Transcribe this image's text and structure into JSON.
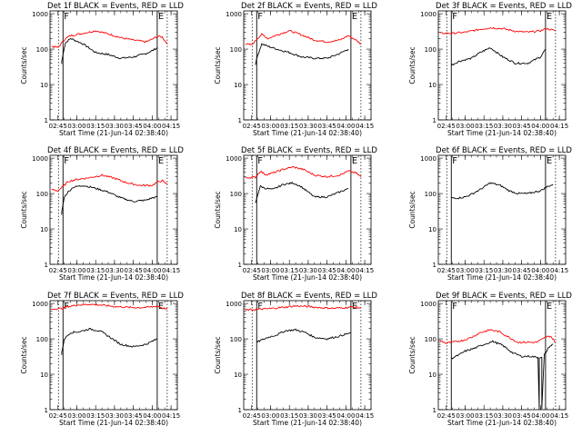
{
  "chart_data": [
    {
      "type": "line",
      "title": "Det 1f BLACK = Events, RED = LLD",
      "xlabel": "Start Time (21-Jun-14 02:38:40)",
      "ylabel": "Counts/sec",
      "x_tick_labels": [
        "02:45",
        "03:00",
        "03:15",
        "03:30",
        "03:45",
        "04:00",
        "04:15"
      ],
      "y_tick_labels": [
        "1",
        "10",
        "100",
        "1000"
      ],
      "ylim": [
        1,
        1200
      ],
      "yscale": "log",
      "markers": [
        {
          "label": "F",
          "time": "02:49"
        },
        {
          "label": "E",
          "time": "04:04"
        }
      ],
      "series": [
        {
          "name": "Events",
          "color": "#000000",
          "time": [
            "02:48",
            "02:48",
            "02:50",
            "02:51",
            "02:55",
            "03:05",
            "03:15",
            "03:25",
            "03:35",
            "03:45",
            "03:55",
            "04:00",
            "04:04"
          ],
          "values": [
            38,
            45,
            110,
            150,
            200,
            140,
            80,
            70,
            55,
            60,
            75,
            90,
            110
          ]
        },
        {
          "name": "LLD",
          "color": "#ff0000",
          "time": [
            "02:40",
            "02:45",
            "02:51",
            "02:55",
            "03:05",
            "03:15",
            "03:25",
            "03:35",
            "03:45",
            "03:55",
            "04:00",
            "04:04",
            "04:08",
            "04:12"
          ],
          "values": [
            120,
            110,
            200,
            240,
            280,
            330,
            270,
            210,
            180,
            160,
            190,
            230,
            220,
            140
          ]
        }
      ]
    },
    {
      "type": "line",
      "title": "Det 2f BLACK = Events, RED = LLD",
      "xlabel": "Start Time (21-Jun-14 02:38:40)",
      "ylabel": "Counts/sec",
      "x_tick_labels": [
        "02:45",
        "03:00",
        "03:15",
        "03:30",
        "03:45",
        "04:00",
        "04:15"
      ],
      "y_tick_labels": [
        "1",
        "10",
        "100",
        "1000"
      ],
      "ylim": [
        1,
        1200
      ],
      "yscale": "log",
      "markers": [
        {
          "label": "F",
          "time": "02:49"
        },
        {
          "label": "E",
          "time": "04:04"
        }
      ],
      "series": [
        {
          "name": "Events",
          "color": "#000000",
          "time": [
            "02:48",
            "02:50",
            "02:53",
            "02:58",
            "03:05",
            "03:15",
            "03:25",
            "03:35",
            "03:45",
            "03:55",
            "04:02"
          ],
          "values": [
            38,
            70,
            140,
            120,
            100,
            80,
            60,
            55,
            55,
            75,
            100
          ]
        },
        {
          "name": "LLD",
          "color": "#ff0000",
          "time": [
            "02:40",
            "02:45",
            "02:49",
            "02:53",
            "02:58",
            "03:05",
            "03:15",
            "03:25",
            "03:35",
            "03:45",
            "03:55",
            "04:02",
            "04:08",
            "04:12"
          ],
          "values": [
            140,
            130,
            190,
            260,
            200,
            250,
            330,
            250,
            180,
            160,
            180,
            240,
            180,
            140
          ]
        }
      ]
    },
    {
      "type": "line",
      "title": "Det 3f BLACK = Events, RED = LLD",
      "xlabel": "Start Time (21-Jun-14 02:38:40)",
      "ylabel": "Counts/sec",
      "x_tick_labels": [
        "02:45",
        "03:00",
        "03:15",
        "03:30",
        "03:45",
        "04:00",
        "04:15"
      ],
      "y_tick_labels": [
        "1",
        "10",
        "100",
        "1000"
      ],
      "ylim": [
        1,
        1200
      ],
      "yscale": "log",
      "markers": [
        {
          "label": "F",
          "time": "02:49"
        },
        {
          "label": "E",
          "time": "04:04"
        }
      ],
      "series": [
        {
          "name": "Events",
          "color": "#000000",
          "time": [
            "02:49",
            "02:55",
            "03:00",
            "03:05",
            "03:12",
            "03:20",
            "03:30",
            "03:40",
            "03:50",
            "04:00",
            "04:04"
          ],
          "values": [
            35,
            45,
            50,
            55,
            80,
            110,
            60,
            40,
            40,
            60,
            100
          ]
        },
        {
          "name": "LLD",
          "color": "#ff0000",
          "time": [
            "02:40",
            "02:50",
            "03:00",
            "03:10",
            "03:20",
            "03:30",
            "03:40",
            "03:50",
            "04:00",
            "04:05",
            "04:12"
          ],
          "values": [
            280,
            280,
            300,
            350,
            400,
            380,
            320,
            300,
            330,
            380,
            330
          ]
        }
      ]
    },
    {
      "type": "line",
      "title": "Det 4f BLACK = Events, RED = LLD",
      "xlabel": "Start Time (21-Jun-14 02:38:40)",
      "ylabel": "Counts/sec",
      "x_tick_labels": [
        "02:45",
        "03:00",
        "03:15",
        "03:30",
        "03:45",
        "04:00",
        "04:15"
      ],
      "y_tick_labels": [
        "1",
        "10",
        "100",
        "1000"
      ],
      "ylim": [
        1,
        1200
      ],
      "yscale": "log",
      "markers": [
        {
          "label": "F",
          "time": "02:49"
        },
        {
          "label": "E",
          "time": "04:04"
        }
      ],
      "series": [
        {
          "name": "Events",
          "color": "#000000",
          "time": [
            "02:48",
            "02:48",
            "02:50",
            "02:53",
            "02:57",
            "03:05",
            "03:15",
            "03:25",
            "03:35",
            "03:45",
            "03:55",
            "04:00",
            "04:04"
          ],
          "values": [
            25,
            30,
            80,
            110,
            150,
            170,
            140,
            110,
            75,
            60,
            65,
            75,
            80
          ]
        },
        {
          "name": "LLD",
          "color": "#ff0000",
          "time": [
            "02:40",
            "02:45",
            "02:50",
            "02:53",
            "03:00",
            "03:10",
            "03:20",
            "03:30",
            "03:40",
            "03:50",
            "04:00",
            "04:04",
            "04:08",
            "04:12"
          ],
          "values": [
            130,
            120,
            170,
            220,
            250,
            280,
            330,
            270,
            200,
            170,
            170,
            210,
            230,
            180
          ]
        }
      ]
    },
    {
      "type": "line",
      "title": "Det 5f BLACK = Events, RED = LLD",
      "xlabel": "Start Time (21-Jun-14 02:38:40)",
      "ylabel": "Counts/sec",
      "x_tick_labels": [
        "02:45",
        "03:00",
        "03:15",
        "03:30",
        "03:45",
        "04:00",
        "04:15"
      ],
      "y_tick_labels": [
        "1",
        "10",
        "100",
        "1000"
      ],
      "ylim": [
        1,
        1200
      ],
      "yscale": "log",
      "markers": [
        {
          "label": "F",
          "time": "02:49"
        },
        {
          "label": "E",
          "time": "04:04"
        }
      ],
      "series": [
        {
          "name": "Events",
          "color": "#000000",
          "time": [
            "02:48",
            "02:50",
            "02:52",
            "02:56",
            "03:02",
            "03:10",
            "03:18",
            "03:24",
            "03:35",
            "03:45",
            "03:55",
            "04:02"
          ],
          "values": [
            55,
            100,
            160,
            140,
            130,
            180,
            200,
            160,
            80,
            80,
            110,
            140
          ]
        },
        {
          "name": "LLD",
          "color": "#ff0000",
          "time": [
            "02:40",
            "02:48",
            "02:52",
            "02:56",
            "03:02",
            "03:10",
            "03:18",
            "03:26",
            "03:35",
            "03:45",
            "03:55",
            "04:02",
            "04:08",
            "04:12"
          ],
          "values": [
            280,
            290,
            430,
            340,
            380,
            480,
            560,
            480,
            330,
            300,
            330,
            430,
            380,
            300
          ]
        }
      ]
    },
    {
      "type": "line",
      "title": "Det 6f BLACK = Events, RED = LLD",
      "xlabel": "Start Time (21-Jun-14 02:38:40)",
      "ylabel": "Counts/sec",
      "x_tick_labels": [
        "02:45",
        "03:00",
        "03:15",
        "03:30",
        "03:45",
        "04:00",
        "04:15"
      ],
      "y_tick_labels": [
        "1",
        "10",
        "100",
        "1000"
      ],
      "ylim": [
        1,
        1200
      ],
      "yscale": "log",
      "markers": [
        {
          "label": "F",
          "time": "02:49"
        },
        {
          "label": "E",
          "time": "04:04"
        }
      ],
      "series": [
        {
          "name": "Events",
          "color": "#000000",
          "time": [
            "02:49",
            "02:55",
            "03:00",
            "03:05",
            "03:12",
            "03:20",
            "03:28",
            "03:35",
            "03:42",
            "03:50",
            "04:00",
            "04:06",
            "04:10"
          ],
          "values": [
            75,
            75,
            80,
            95,
            130,
            200,
            170,
            120,
            100,
            100,
            120,
            160,
            180
          ]
        }
      ]
    },
    {
      "type": "line",
      "title": "Det 7f BLACK = Events, RED = LLD",
      "xlabel": "Start Time (21-Jun-14 02:38:40)",
      "ylabel": "Counts/sec",
      "x_tick_labels": [
        "02:45",
        "03:00",
        "03:15",
        "03:30",
        "03:45",
        "04:00",
        "04:15"
      ],
      "y_tick_labels": [
        "1",
        "10",
        "100",
        "1000"
      ],
      "ylim": [
        1,
        1200
      ],
      "yscale": "log",
      "markers": [
        {
          "label": "F",
          "time": "02:49"
        },
        {
          "label": "E",
          "time": "04:04"
        }
      ],
      "series": [
        {
          "name": "Events",
          "color": "#000000",
          "time": [
            "02:48",
            "02:48",
            "02:50",
            "02:55",
            "03:02",
            "03:10",
            "03:18",
            "03:25",
            "03:35",
            "03:45",
            "03:55",
            "04:04"
          ],
          "values": [
            35,
            40,
            100,
            150,
            160,
            190,
            170,
            120,
            70,
            60,
            70,
            100
          ]
        },
        {
          "name": "LLD",
          "color": "#ff0000",
          "time": [
            "02:40",
            "02:49",
            "02:52",
            "03:00",
            "03:10",
            "03:20",
            "03:30",
            "03:40",
            "03:50",
            "04:00",
            "04:04",
            "04:08",
            "04:12"
          ],
          "values": [
            700,
            720,
            800,
            900,
            950,
            900,
            820,
            780,
            760,
            800,
            850,
            750,
            700
          ]
        }
      ]
    },
    {
      "type": "line",
      "title": "Det 8f BLACK = Events, RED = LLD",
      "xlabel": "Start Time (21-Jun-14 02:38:40)",
      "ylabel": "Counts/sec",
      "x_tick_labels": [
        "02:45",
        "03:00",
        "03:15",
        "03:30",
        "03:45",
        "04:00",
        "04:15"
      ],
      "y_tick_labels": [
        "1",
        "10",
        "100",
        "1000"
      ],
      "ylim": [
        1,
        1200
      ],
      "yscale": "log",
      "markers": [
        {
          "label": "F",
          "time": "02:49"
        },
        {
          "label": "E",
          "time": "04:04"
        }
      ],
      "series": [
        {
          "name": "Events",
          "color": "#000000",
          "time": [
            "02:49",
            "02:52",
            "02:58",
            "03:05",
            "03:12",
            "03:20",
            "03:28",
            "03:35",
            "03:45",
            "03:55",
            "04:04"
          ],
          "values": [
            80,
            90,
            110,
            130,
            170,
            180,
            150,
            110,
            100,
            120,
            150
          ]
        },
        {
          "name": "LLD",
          "color": "#ff0000",
          "time": [
            "02:40",
            "02:50",
            "03:00",
            "03:10",
            "03:20",
            "03:30",
            "03:40",
            "03:50",
            "04:00",
            "04:05",
            "04:12"
          ],
          "values": [
            650,
            680,
            720,
            780,
            850,
            820,
            760,
            730,
            760,
            800,
            750
          ]
        }
      ]
    },
    {
      "type": "line",
      "title": "Det 9f BLACK = Events, RED = LLD",
      "xlabel": "Start Time (21-Jun-14 02:38:40)",
      "ylabel": "Counts/sec",
      "x_tick_labels": [
        "02:45",
        "03:00",
        "03:15",
        "03:30",
        "03:45",
        "04:00",
        "04:15"
      ],
      "y_tick_labels": [
        "1",
        "10",
        "100",
        "1000"
      ],
      "ylim": [
        1,
        1200
      ],
      "yscale": "log",
      "markers": [
        {
          "label": "F",
          "time": "02:49"
        },
        {
          "label": "E",
          "time": "04:04"
        }
      ],
      "series": [
        {
          "name": "Events",
          "color": "#000000",
          "time": [
            "02:49",
            "02:55",
            "03:00",
            "03:08",
            "03:15",
            "03:22",
            "03:30",
            "03:38",
            "03:45",
            "03:52",
            "03:58",
            "03:59",
            "03:59",
            "04:01",
            "04:01",
            "04:03",
            "04:07",
            "04:10"
          ],
          "values": [
            28,
            35,
            45,
            55,
            70,
            85,
            65,
            40,
            32,
            32,
            30,
            1,
            30,
            30,
            1,
            35,
            60,
            70
          ]
        },
        {
          "name": "LLD",
          "color": "#ff0000",
          "time": [
            "02:40",
            "02:45",
            "02:49",
            "02:58",
            "03:05",
            "03:12",
            "03:20",
            "03:27",
            "03:35",
            "03:42",
            "03:50",
            "03:57",
            "04:04",
            "04:08",
            "04:12"
          ],
          "values": [
            90,
            75,
            80,
            90,
            110,
            150,
            180,
            160,
            110,
            80,
            80,
            80,
            110,
            120,
            80
          ]
        }
      ]
    }
  ]
}
